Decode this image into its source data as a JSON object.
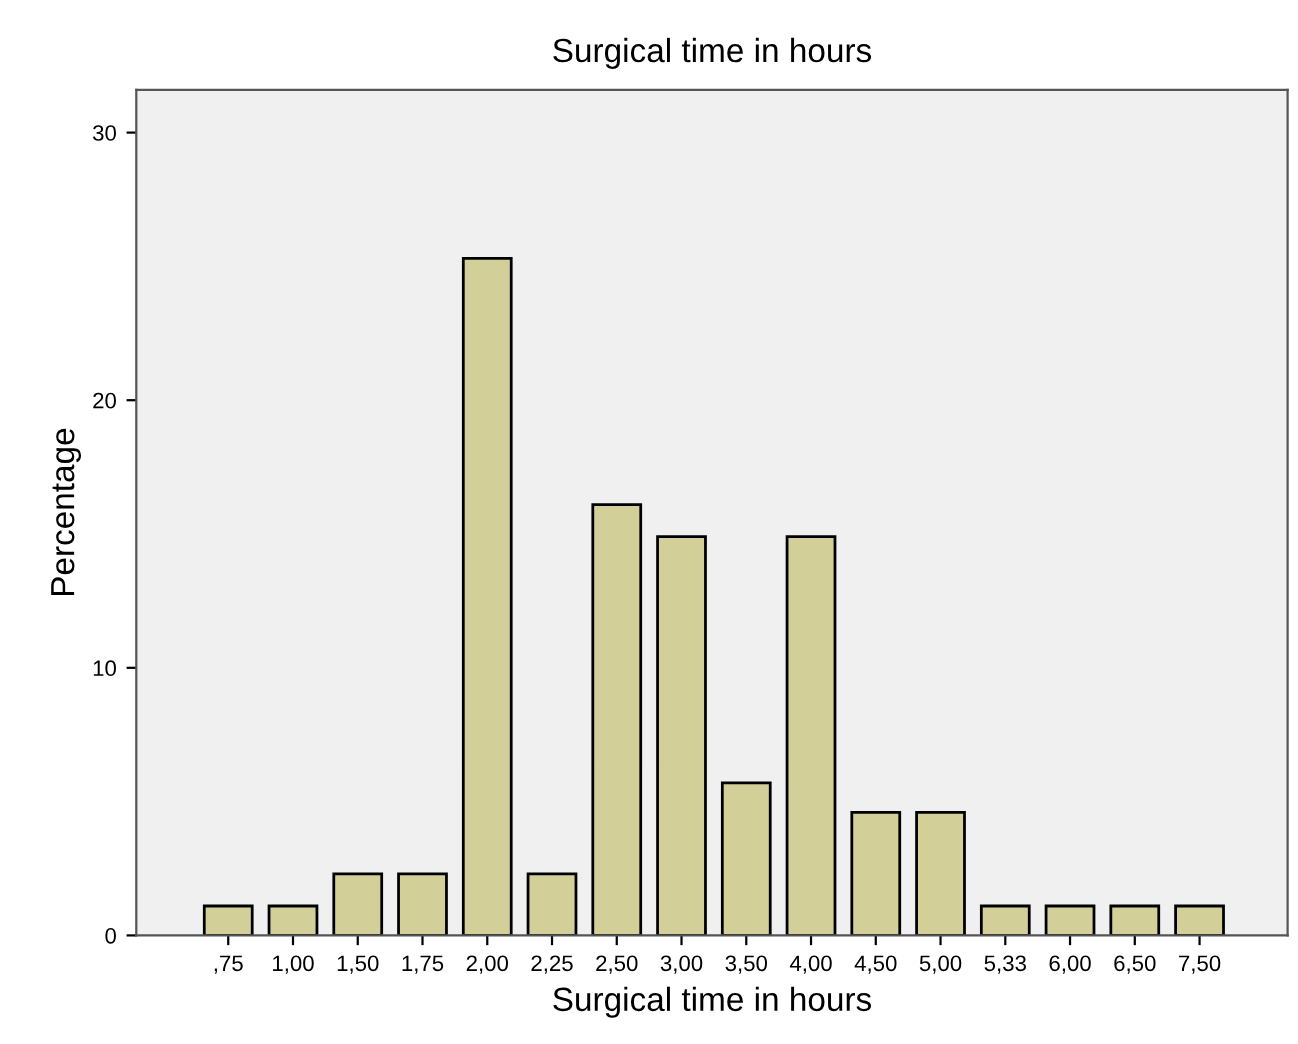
{
  "chart_data": {
    "type": "bar",
    "title": "Surgical time in hours",
    "xlabel": "Surgical time in hours",
    "ylabel": "Percentage",
    "categories": [
      ",75",
      "1,00",
      "1,50",
      "1,75",
      "2,00",
      "2,25",
      "2,50",
      "3,00",
      "3,50",
      "4,00",
      "4,50",
      "5,00",
      "5,33",
      "6,00",
      "6,50",
      "7,50"
    ],
    "values": [
      1.1,
      1.1,
      2.3,
      2.3,
      25.3,
      2.3,
      16.1,
      14.9,
      5.7,
      14.9,
      4.6,
      4.6,
      1.1,
      1.1,
      1.1,
      1.1
    ],
    "color": "#d3cf98",
    "ylim": [
      0,
      31.6
    ],
    "yticks": [
      0,
      10,
      20,
      30
    ],
    "grid": false,
    "legend": false
  }
}
